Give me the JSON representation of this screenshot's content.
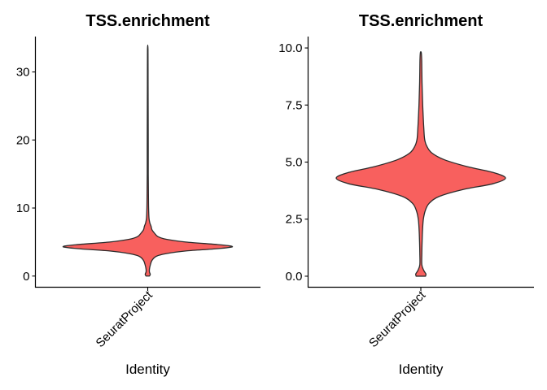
{
  "chart_data": [
    {
      "type": "violin",
      "title": "TSS.enrichment",
      "xlabel": "Identity",
      "ylabel": "",
      "categories": [
        "SeuratProject"
      ],
      "ylim": [
        -1.7,
        35.2
      ],
      "yticks": [
        0,
        10,
        20,
        30
      ],
      "ytick_labels": [
        "0",
        "10",
        "20",
        "30"
      ],
      "fill_color": "#F8605E",
      "series": [
        {
          "category": "SeuratProject",
          "min": 0.0,
          "max": 33.3,
          "density_profile": [
            [
              0.0,
              0.02
            ],
            [
              0.25,
              0.03
            ],
            [
              0.6,
              0.02
            ],
            [
              1.0,
              0.02
            ],
            [
              1.6,
              0.03
            ],
            [
              2.3,
              0.05
            ],
            [
              2.9,
              0.1
            ],
            [
              3.3,
              0.22
            ],
            [
              3.7,
              0.46
            ],
            [
              4.0,
              0.8
            ],
            [
              4.3,
              1.0
            ],
            [
              4.6,
              0.85
            ],
            [
              5.0,
              0.45
            ],
            [
              5.4,
              0.22
            ],
            [
              5.8,
              0.12
            ],
            [
              6.3,
              0.08
            ],
            [
              6.8,
              0.05
            ],
            [
              7.3,
              0.04
            ],
            [
              7.8,
              0.025
            ],
            [
              8.5,
              0.015
            ],
            [
              10.0,
              0.01
            ],
            [
              12.0,
              0.008
            ],
            [
              15.0,
              0.006
            ],
            [
              19.0,
              0.006
            ],
            [
              24.0,
              0.005
            ],
            [
              28.0,
              0.004
            ],
            [
              33.3,
              0.003
            ]
          ]
        }
      ]
    },
    {
      "type": "violin",
      "title": "TSS.enrichment",
      "xlabel": "Identity",
      "ylabel": "",
      "categories": [
        "SeuratProject"
      ],
      "ylim": [
        -0.5,
        10.5
      ],
      "yticks": [
        0,
        2.5,
        5,
        7.5,
        10
      ],
      "ytick_labels": [
        "0.0",
        "2.5",
        "5.0",
        "7.5",
        "10.0"
      ],
      "fill_color": "#F8605E",
      "series": [
        {
          "category": "SeuratProject",
          "min": 0.0,
          "max": 9.8,
          "density_profile": [
            [
              0.0,
              0.055
            ],
            [
              0.1,
              0.06
            ],
            [
              0.25,
              0.035
            ],
            [
              0.5,
              0.012
            ],
            [
              1.0,
              0.012
            ],
            [
              1.5,
              0.015
            ],
            [
              2.0,
              0.02
            ],
            [
              2.5,
              0.03
            ],
            [
              2.9,
              0.055
            ],
            [
              3.2,
              0.1
            ],
            [
              3.5,
              0.22
            ],
            [
              3.8,
              0.5
            ],
            [
              4.05,
              0.85
            ],
            [
              4.3,
              1.0
            ],
            [
              4.55,
              0.85
            ],
            [
              4.8,
              0.55
            ],
            [
              5.1,
              0.28
            ],
            [
              5.4,
              0.13
            ],
            [
              5.7,
              0.07
            ],
            [
              6.0,
              0.045
            ],
            [
              6.5,
              0.035
            ],
            [
              7.0,
              0.028
            ],
            [
              7.5,
              0.022
            ],
            [
              8.0,
              0.018
            ],
            [
              8.5,
              0.014
            ],
            [
              9.0,
              0.012
            ],
            [
              9.5,
              0.01
            ],
            [
              9.8,
              0.005
            ]
          ]
        }
      ]
    }
  ]
}
